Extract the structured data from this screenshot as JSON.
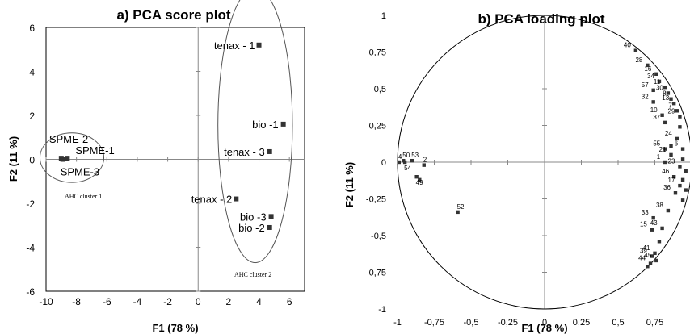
{
  "chart_data": [
    {
      "type": "scatter",
      "title": "a) PCA score plot",
      "xlabel": "F1 (78 %)",
      "ylabel": "F2 (11 %)",
      "xlim": [
        -10,
        7
      ],
      "ylim": [
        -6,
        6
      ],
      "xticks": [
        -10,
        -8,
        -6,
        -4,
        -2,
        0,
        2,
        4,
        6
      ],
      "yticks": [
        -6,
        -4,
        -2,
        0,
        2,
        4,
        6
      ],
      "grid": false,
      "points": [
        {
          "label": "tenax - 1",
          "x": 4.0,
          "y": 5.2
        },
        {
          "label": "bio -1",
          "x": 5.6,
          "y": 1.6
        },
        {
          "label": "tenax - 3",
          "x": 4.7,
          "y": 0.35
        },
        {
          "label": "tenax - 2",
          "x": 2.5,
          "y": -1.8
        },
        {
          "label": "bio -3",
          "x": 4.8,
          "y": -2.6
        },
        {
          "label": "bio -2",
          "x": 4.7,
          "y": -3.1
        },
        {
          "label": "SPME-2",
          "x": -9.0,
          "y": 0.05
        },
        {
          "label": "SPME-1",
          "x": -8.6,
          "y": 0.05
        },
        {
          "label": "SPME-3",
          "x": -8.9,
          "y": 0.0
        }
      ],
      "annotations": [
        "AHC cluster 1",
        "AHC cluster 2"
      ]
    },
    {
      "type": "scatter",
      "title": "b) PCA loading plot",
      "xlabel": "F1 (78 %)",
      "ylabel": "F2 (11 %)",
      "xlim": [
        -1,
        1
      ],
      "ylim": [
        -1,
        1
      ],
      "xticks": [
        "-1",
        "-0,75",
        "-0,5",
        "-0,25",
        "0",
        "0,25",
        "0,5",
        "0,75"
      ],
      "yticks": [
        "-1",
        "-0,75",
        "-0,5",
        "-0,25",
        "0",
        "0,25",
        "0,5",
        "0,75",
        "1"
      ],
      "grid": false,
      "correlation_circle": true,
      "points": [
        {
          "label": "40",
          "x": 0.62,
          "y": 0.76
        },
        {
          "label": "28",
          "x": 0.7,
          "y": 0.66
        },
        {
          "label": "16",
          "x": 0.76,
          "y": 0.6
        },
        {
          "label": "34",
          "x": 0.78,
          "y": 0.55
        },
        {
          "label": "11",
          "x": 0.82,
          "y": 0.51
        },
        {
          "label": "57",
          "x": 0.74,
          "y": 0.49
        },
        {
          "label": "30",
          "x": 0.84,
          "y": 0.47
        },
        {
          "label": "8",
          "x": 0.86,
          "y": 0.43
        },
        {
          "label": "13",
          "x": 0.88,
          "y": 0.4
        },
        {
          "label": "32",
          "x": 0.74,
          "y": 0.41
        },
        {
          "label": "7",
          "x": 0.9,
          "y": 0.35
        },
        {
          "label": "10",
          "x": 0.8,
          "y": 0.32
        },
        {
          "label": "29",
          "x": 0.92,
          "y": 0.31
        },
        {
          "label": "37",
          "x": 0.82,
          "y": 0.27
        },
        {
          "label": "",
          "x": 0.92,
          "y": 0.24
        },
        {
          "label": "24",
          "x": 0.9,
          "y": 0.16
        },
        {
          "label": "",
          "x": 0.86,
          "y": 0.11
        },
        {
          "label": "55",
          "x": 0.82,
          "y": 0.09
        },
        {
          "label": "6",
          "x": 0.94,
          "y": 0.09
        },
        {
          "label": "21",
          "x": 0.86,
          "y": 0.05
        },
        {
          "label": "1",
          "x": 0.82,
          "y": 0.0
        },
        {
          "label": "",
          "x": 0.94,
          "y": 0.02
        },
        {
          "label": "23",
          "x": 0.92,
          "y": -0.03
        },
        {
          "label": "",
          "x": 0.96,
          "y": -0.06
        },
        {
          "label": "46",
          "x": 0.88,
          "y": -0.1
        },
        {
          "label": "",
          "x": 0.94,
          "y": -0.12
        },
        {
          "label": "17",
          "x": 0.92,
          "y": -0.16
        },
        {
          "label": "",
          "x": 0.96,
          "y": -0.19
        },
        {
          "label": "36",
          "x": 0.89,
          "y": -0.21
        },
        {
          "label": "",
          "x": 0.94,
          "y": -0.26
        },
        {
          "label": "38",
          "x": 0.84,
          "y": -0.33
        },
        {
          "label": "33",
          "x": 0.74,
          "y": -0.38
        },
        {
          "label": "15",
          "x": 0.73,
          "y": -0.46
        },
        {
          "label": "43",
          "x": 0.8,
          "y": -0.45
        },
        {
          "label": "",
          "x": 0.78,
          "y": -0.54
        },
        {
          "label": "41",
          "x": 0.75,
          "y": -0.62
        },
        {
          "label": "39",
          "x": 0.73,
          "y": -0.64
        },
        {
          "label": "44",
          "x": 0.72,
          "y": -0.69
        },
        {
          "label": "45",
          "x": 0.76,
          "y": -0.67
        },
        {
          "label": "",
          "x": 0.7,
          "y": -0.71
        },
        {
          "label": "50",
          "x": -0.96,
          "y": 0.01
        },
        {
          "label": "4",
          "x": -0.99,
          "y": 0.0
        },
        {
          "label": "53",
          "x": -0.9,
          "y": 0.01
        },
        {
          "label": "54",
          "x": -0.95,
          "y": 0.0
        },
        {
          "label": "2",
          "x": -0.82,
          "y": -0.02
        },
        {
          "label": "49",
          "x": -0.87,
          "y": -0.1
        },
        {
          "label": "",
          "x": -0.85,
          "y": -0.12
        },
        {
          "label": "52",
          "x": -0.59,
          "y": -0.34
        }
      ]
    }
  ]
}
